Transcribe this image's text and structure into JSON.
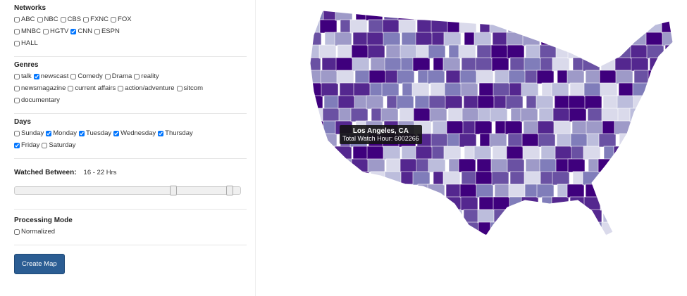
{
  "sidebar": {
    "networks": {
      "title": "Networks",
      "rows": [
        [
          {
            "label": "ABC",
            "checked": false
          },
          {
            "label": "NBC",
            "checked": false
          },
          {
            "label": "CBS",
            "checked": false
          },
          {
            "label": "FXNC",
            "checked": false
          },
          {
            "label": "FOX",
            "checked": false
          }
        ],
        [
          {
            "label": "MNBC",
            "checked": false
          },
          {
            "label": "HGTV",
            "checked": false
          },
          {
            "label": "CNN",
            "checked": true
          },
          {
            "label": "ESPN",
            "checked": false
          }
        ],
        [
          {
            "label": "HALL",
            "checked": false
          }
        ]
      ]
    },
    "genres": {
      "title": "Genres",
      "rows": [
        [
          {
            "label": "talk",
            "checked": false
          },
          {
            "label": "newscast",
            "checked": true
          },
          {
            "label": "Comedy",
            "checked": false
          },
          {
            "label": "Drama",
            "checked": false
          },
          {
            "label": "reality",
            "checked": false
          }
        ],
        [
          {
            "label": "newsmagazine",
            "checked": false
          },
          {
            "label": "current affairs",
            "checked": false
          },
          {
            "label": "action/adventure",
            "checked": false
          },
          {
            "label": "sitcom",
            "checked": false
          }
        ],
        [
          {
            "label": "documentary",
            "checked": false
          }
        ]
      ]
    },
    "days": {
      "title": "Days",
      "rows": [
        [
          {
            "label": "Sunday",
            "checked": false
          },
          {
            "label": "Monday",
            "checked": true
          },
          {
            "label": "Tuesday",
            "checked": true
          },
          {
            "label": "Wednesday",
            "checked": true
          },
          {
            "label": "Thursday",
            "checked": true
          }
        ],
        [
          {
            "label": "Friday",
            "checked": true
          },
          {
            "label": "Saturday",
            "checked": false
          }
        ]
      ]
    },
    "watched": {
      "title": "Watched Between:",
      "range": "16 - 22 Hrs"
    },
    "processing": {
      "title": "Processing Mode",
      "rows": [
        [
          {
            "label": "Normalized",
            "checked": false
          }
        ]
      ]
    },
    "button": "Create Map"
  },
  "map": {
    "tooltip": {
      "title": "Los Angeles, CA",
      "label": "Total Watch Hour:",
      "value": "6002266"
    }
  }
}
